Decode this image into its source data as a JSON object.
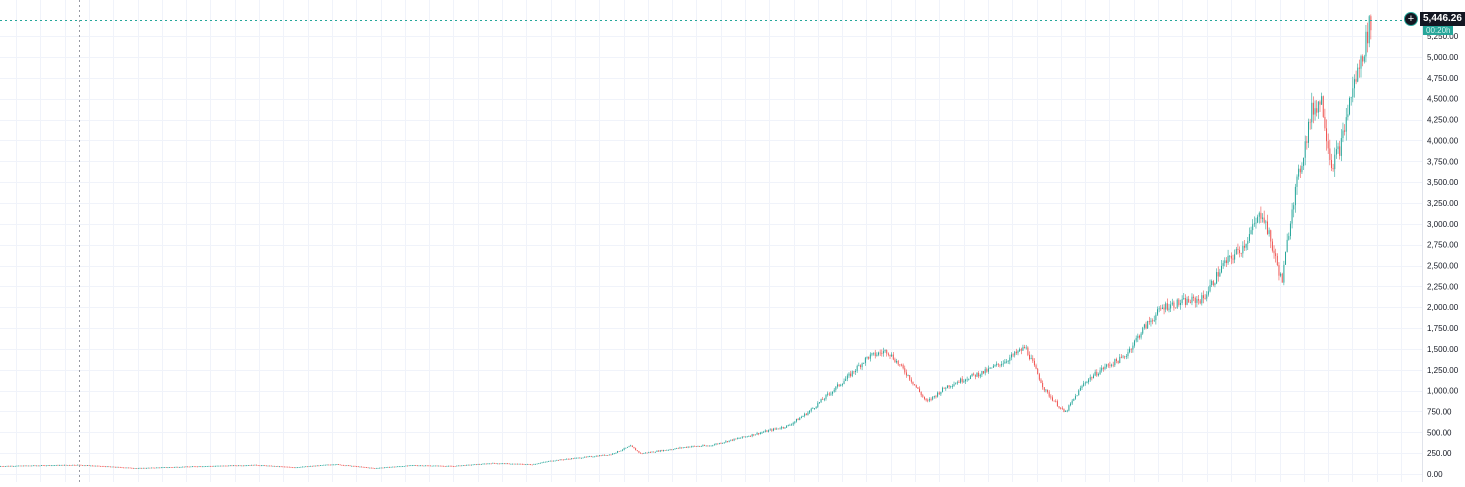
{
  "chart_data": {
    "type": "candlestick",
    "title": "",
    "x_range_years": [
      1955,
      2024.5
    ],
    "ylim": [
      0,
      5500
    ],
    "y_ticks": [
      "0.00",
      "250.00",
      "500.00",
      "750.00",
      "1,000.00",
      "1,250.00",
      "1,500.00",
      "1,750.00",
      "2,000.00",
      "2,250.00",
      "2,500.00",
      "2,750.00",
      "3,000.00",
      "3,250.00",
      "3,500.00",
      "3,750.00",
      "4,000.00",
      "4,250.00",
      "4,500.00",
      "4,750.00",
      "5,000.00",
      "5,250.00"
    ],
    "y_tick_values": [
      0,
      250,
      500,
      750,
      1000,
      1250,
      1500,
      1750,
      2000,
      2250,
      2500,
      2750,
      3000,
      3250,
      3500,
      3750,
      4000,
      4250,
      4500,
      4750,
      5000,
      5250
    ],
    "grid": true,
    "last_price": 5446.26,
    "last_price_label": "5,446.26",
    "timer_label": "00:20h",
    "up_color": "#26a69a",
    "down_color": "#ef5350",
    "crosshair_x_year": 1959,
    "path_points": [
      [
        1955,
        95
      ],
      [
        1959,
        110
      ],
      [
        1962,
        70
      ],
      [
        1965,
        92
      ],
      [
        1968,
        108
      ],
      [
        1970,
        80
      ],
      [
        1972,
        118
      ],
      [
        1974,
        70
      ],
      [
        1976,
        105
      ],
      [
        1978,
        95
      ],
      [
        1980,
        130
      ],
      [
        1982,
        115
      ],
      [
        1983,
        160
      ],
      [
        1986,
        235
      ],
      [
        1987,
        335
      ],
      [
        1987.5,
        245
      ],
      [
        1990,
        330
      ],
      [
        1991,
        340
      ],
      [
        1993,
        460
      ],
      [
        1995,
        580
      ],
      [
        1996,
        740
      ],
      [
        1997,
        950
      ],
      [
        1998,
        1160
      ],
      [
        1999,
        1400
      ],
      [
        2000,
        1480
      ],
      [
        2001,
        1200
      ],
      [
        2002,
        860
      ],
      [
        2003,
        1050
      ],
      [
        2004,
        1150
      ],
      [
        2005,
        1230
      ],
      [
        2006,
        1360
      ],
      [
        2007,
        1520
      ],
      [
        2008,
        1000
      ],
      [
        2009,
        730
      ],
      [
        2010,
        1100
      ],
      [
        2011,
        1280
      ],
      [
        2012,
        1400
      ],
      [
        2013,
        1750
      ],
      [
        2014,
        2010
      ],
      [
        2015,
        2060
      ],
      [
        2016,
        2100
      ],
      [
        2017,
        2500
      ],
      [
        2018,
        2720
      ],
      [
        2019,
        3150
      ],
      [
        2020,
        2300
      ],
      [
        2020.5,
        3200
      ],
      [
        2021,
        3750
      ],
      [
        2021.5,
        4350
      ],
      [
        2022,
        4500
      ],
      [
        2022.5,
        3700
      ],
      [
        2023,
        3950
      ],
      [
        2023.5,
        4550
      ],
      [
        2024,
        4950
      ],
      [
        2024.5,
        5446
      ]
    ]
  }
}
